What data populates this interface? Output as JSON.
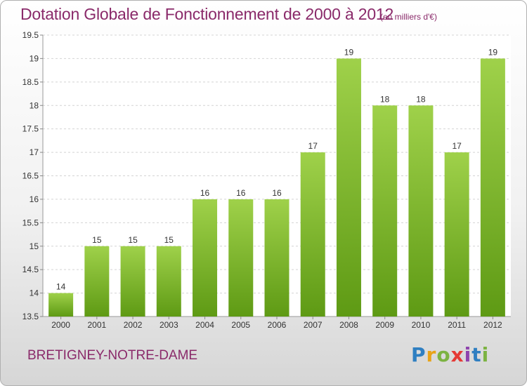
{
  "title": "Dotation Globale de Fonctionnement de 2000 à 2012",
  "unit_note": "(en milliers d'€)",
  "place_name": "BRETIGNEY-NOTRE-DAME",
  "logo": {
    "text": "Proxiti",
    "letters": [
      {
        "ch": "P",
        "color": "#2f7fc1"
      },
      {
        "ch": "r",
        "color": "#e8a317"
      },
      {
        "ch": "o",
        "color": "#7cb342"
      },
      {
        "ch": "x",
        "color": "#e53935"
      },
      {
        "ch": "i",
        "color": "#8e44ad"
      },
      {
        "ch": "t",
        "color": "#2f7fc1"
      },
      {
        "ch": "i",
        "color": "#7cb342"
      }
    ]
  },
  "colors": {
    "title": "#8a2a6a",
    "bar_top": "#9fd14a",
    "bar_bottom": "#5e9a14",
    "grid": "#d4d4d4",
    "axis_text": "#333333"
  },
  "chart_data": {
    "type": "bar",
    "categories": [
      "2000",
      "2001",
      "2002",
      "2003",
      "2004",
      "2005",
      "2006",
      "2007",
      "2008",
      "2009",
      "2010",
      "2011",
      "2012"
    ],
    "values": [
      14,
      15,
      15,
      15,
      16,
      16,
      16,
      17,
      19,
      18,
      18,
      17,
      19
    ],
    "data_labels": [
      "14",
      "15",
      "15",
      "15",
      "16",
      "16",
      "16",
      "17",
      "19",
      "18",
      "18",
      "17",
      "19"
    ],
    "ylim": [
      13.5,
      19.5
    ],
    "yticks": [
      13.5,
      14,
      14.5,
      15,
      15.5,
      16,
      16.5,
      17,
      17.5,
      18,
      18.5,
      19,
      19.5
    ],
    "ytick_labels": [
      "13.5",
      "14",
      "14.5",
      "15",
      "15.5",
      "16",
      "16.5",
      "17",
      "17.5",
      "18",
      "18.5",
      "19",
      "19.5"
    ],
    "grid": true,
    "xlabel": "",
    "ylabel": ""
  }
}
